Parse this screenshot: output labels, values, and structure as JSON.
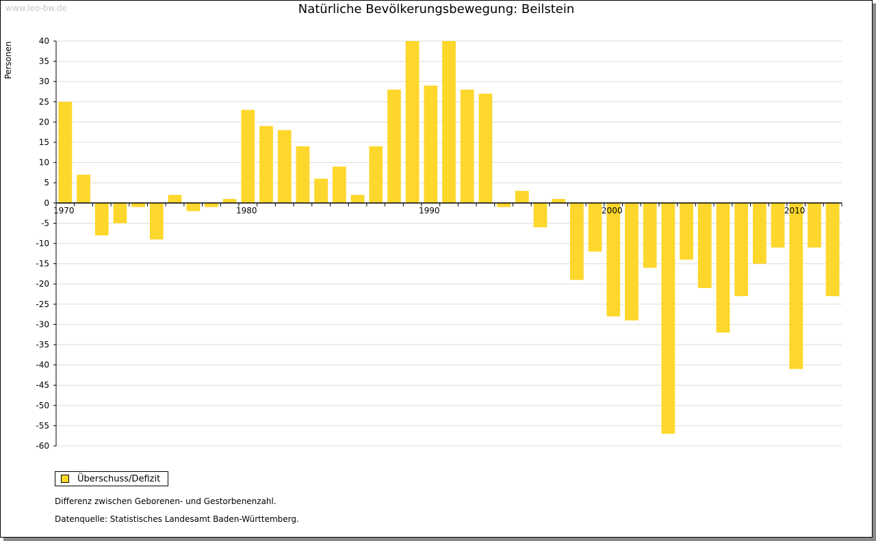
{
  "watermark": "www.leo-bw.de",
  "chart_data": {
    "type": "bar",
    "title": "Natürliche Bevölkerungsbewegung: Beilstein",
    "ylabel": "Personen",
    "xlabel": "",
    "ylim": [
      -60,
      40
    ],
    "ytick_step": 5,
    "years": [
      1970,
      1971,
      1972,
      1973,
      1974,
      1975,
      1976,
      1977,
      1978,
      1979,
      1980,
      1981,
      1982,
      1983,
      1984,
      1985,
      1986,
      1987,
      1988,
      1989,
      1990,
      1991,
      1992,
      1993,
      1994,
      1995,
      1996,
      1997,
      1998,
      1999,
      2000,
      2001,
      2002,
      2003,
      2004,
      2005,
      2006,
      2007,
      2008,
      2009,
      2010,
      2011,
      2012
    ],
    "xtick_labels": [
      "1970",
      "1980",
      "1990",
      "2000",
      "2010"
    ],
    "series": [
      {
        "name": "Überschuss/Defizit",
        "color": "#FDD72C",
        "values": [
          25,
          7,
          -8,
          -5,
          -1,
          -9,
          2,
          -2,
          -1,
          1,
          23,
          19,
          18,
          14,
          6,
          9,
          2,
          14,
          28,
          40,
          29,
          40,
          28,
          27,
          -1,
          3,
          -6,
          1,
          -19,
          -12,
          -28,
          -29,
          -16,
          -57,
          -14,
          -21,
          -32,
          -23,
          -15,
          -11,
          -41,
          -11,
          -23
        ]
      }
    ],
    "grid": true,
    "legend_position": "bottom-left"
  },
  "legend": {
    "label": "Überschuss/Defizit"
  },
  "notes": {
    "description": "Differenz zwischen Geborenen- und Gestorbenenzahl.",
    "source": "Datenquelle: Statistisches Landesamt Baden-Württemberg."
  }
}
